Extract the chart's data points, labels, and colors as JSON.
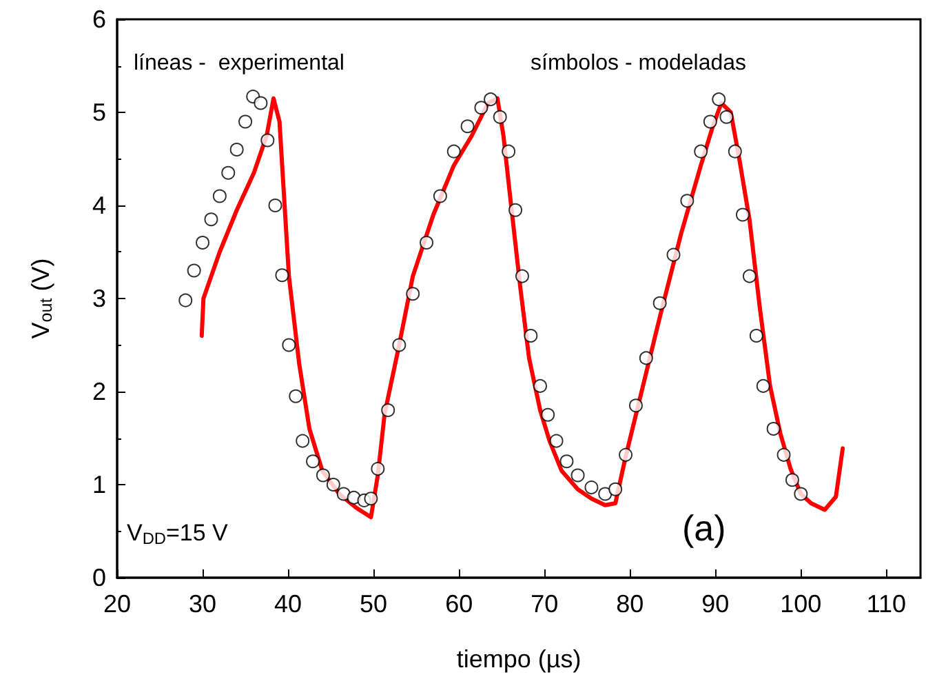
{
  "chart_data": {
    "type": "line",
    "xlabel": "tiempo (µs)",
    "ylabel": "V$_{out}$ (V)",
    "annotations": [
      "líneas -  experimental",
      "símbolos - modeladas",
      "V$_{DD}$=15 V",
      "(a)"
    ],
    "xlim": [
      20,
      114
    ],
    "xticks": [
      20,
      30,
      40,
      50,
      60,
      70,
      80,
      90,
      100,
      110
    ],
    "ylim": [
      0,
      6
    ],
    "yticks": [
      0,
      1,
      2,
      3,
      4,
      5,
      6
    ],
    "grid": false,
    "series": [
      {
        "type": "line",
        "color": "#ff0000",
        "line_style": "solid",
        "x": [
          29.9,
          30.1,
          32,
          34,
          36,
          37.5,
          38.3,
          39,
          40.1,
          41.3,
          42.5,
          44,
          46,
          48,
          49.7,
          50.5,
          51.3,
          53,
          54.6,
          57,
          59.4,
          61.5,
          63.4,
          64.5,
          65.2,
          66.1,
          67.2,
          68.2,
          69.5,
          70.6,
          72,
          73.9,
          75.5,
          77.1,
          78.3,
          79.5,
          81.5,
          83.5,
          86,
          88.3,
          89.7,
          90.7,
          91.8,
          92.8,
          94,
          95.2,
          96.4,
          97.6,
          98.8,
          100,
          101.2,
          102.8,
          104.1,
          104.9
        ],
        "values": [
          2.6,
          3.0,
          3.5,
          3.95,
          4.35,
          4.75,
          5.15,
          4.9,
          3.24,
          2.3,
          1.6,
          1.15,
          0.9,
          0.75,
          0.65,
          1.1,
          1.76,
          2.5,
          3.24,
          3.9,
          4.43,
          4.75,
          5.1,
          5.15,
          4.75,
          4.0,
          3.1,
          2.36,
          1.8,
          1.47,
          1.15,
          0.95,
          0.85,
          0.78,
          0.8,
          1.3,
          2.05,
          2.8,
          3.7,
          4.43,
          4.85,
          5.1,
          5.0,
          4.5,
          3.84,
          2.9,
          2.06,
          1.55,
          1.17,
          0.9,
          0.8,
          0.73,
          0.87,
          1.39
        ]
      },
      {
        "type": "scatter",
        "marker": "circle",
        "color": "#000000",
        "x": [
          28,
          29,
          30,
          31,
          32,
          33,
          34,
          35,
          35.9,
          36.8,
          37.6,
          38.5,
          39.3,
          40.1,
          40.9,
          41.7,
          42.9,
          44.1,
          45.3,
          46.5,
          47.7,
          48.9,
          49.7,
          50.5,
          51.7,
          53,
          54.6,
          56.2,
          57.8,
          59.4,
          61,
          62.6,
          63.7,
          64.8,
          65.8,
          66.6,
          67.4,
          68.4,
          69.5,
          70.4,
          71.4,
          72.6,
          73.9,
          75.5,
          77.1,
          78.3,
          79.5,
          80.7,
          81.9,
          83.5,
          85.1,
          86.7,
          88.3,
          89.4,
          90.4,
          91.3,
          92.3,
          93.2,
          94,
          94.8,
          95.6,
          96.8,
          98,
          99,
          100
        ],
        "values": [
          2.98,
          3.3,
          3.6,
          3.85,
          4.1,
          4.35,
          4.6,
          4.9,
          5.17,
          5.1,
          4.7,
          4.0,
          3.25,
          2.5,
          1.95,
          1.47,
          1.25,
          1.1,
          1.0,
          0.9,
          0.86,
          0.83,
          0.85,
          1.17,
          1.8,
          2.5,
          3.05,
          3.6,
          4.1,
          4.58,
          4.85,
          5.05,
          5.14,
          4.95,
          4.58,
          3.95,
          3.24,
          2.6,
          2.06,
          1.75,
          1.47,
          1.25,
          1.1,
          0.97,
          0.9,
          0.95,
          1.32,
          1.85,
          2.36,
          2.95,
          3.47,
          4.05,
          4.58,
          4.9,
          5.14,
          4.95,
          4.58,
          3.9,
          3.24,
          2.6,
          2.06,
          1.6,
          1.32,
          1.05,
          0.9
        ]
      }
    ]
  }
}
